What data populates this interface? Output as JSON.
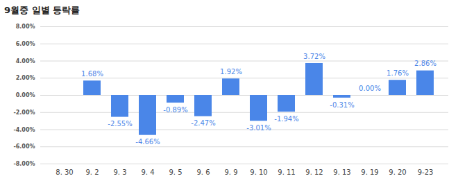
{
  "chart_data": {
    "type": "bar",
    "title": "9월중 일별 등락률",
    "categories": [
      "8. 30",
      "9. 2",
      "9. 3",
      "9. 4",
      "9. 5",
      "9. 6",
      "9. 9",
      "9. 10",
      "9. 11",
      "9. 12",
      "9. 13",
      "9. 19",
      "9. 20",
      "9-23"
    ],
    "values": [
      null,
      1.68,
      -2.55,
      -4.66,
      -0.89,
      -2.47,
      1.92,
      -3.01,
      -1.94,
      3.72,
      -0.31,
      0.0,
      1.76,
      2.86
    ],
    "value_labels": [
      null,
      "1.68%",
      "-2.55%",
      "-4.66%",
      "-0.89%",
      "-2.47%",
      "1.92%",
      "-3.01%",
      "-1.94%",
      "3.72%",
      "-0.31%",
      "0.00%",
      "1.76%",
      "2.86%"
    ],
    "color": "#4a86e8",
    "ylim": [
      -8,
      8
    ],
    "yticks": [
      {
        "value": -8,
        "label": "-8.00%"
      },
      {
        "value": -6,
        "label": "-6.00%"
      },
      {
        "value": -4,
        "label": "-4.00%"
      },
      {
        "value": -2,
        "label": "-2.00%"
      },
      {
        "value": 0,
        "label": "0.00%"
      },
      {
        "value": 2,
        "label": "2.00%"
      },
      {
        "value": 4,
        "label": "4.00%"
      },
      {
        "value": 6,
        "label": "6.00%"
      },
      {
        "value": 8,
        "label": "8.00%"
      }
    ],
    "grid": true,
    "data_labels": true
  }
}
